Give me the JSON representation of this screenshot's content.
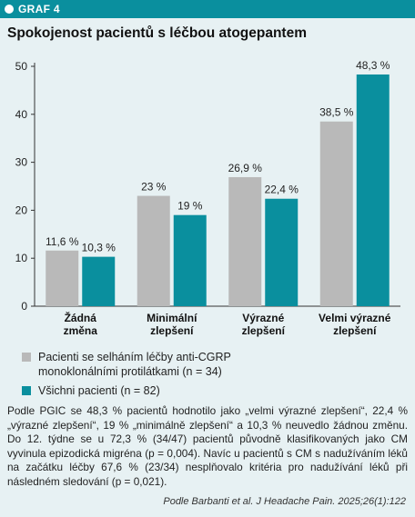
{
  "header": {
    "label": "GRAF 4"
  },
  "colors": {
    "accent": "#0a8f9e",
    "series1": "#b9b9b9",
    "series2": "#0a8f9e",
    "background": "#e7f1f3"
  },
  "chart_data": {
    "type": "bar",
    "title": "Spokojenost pacientů s léčbou atogepantem",
    "categories": [
      [
        "Žádná",
        "změna"
      ],
      [
        "Minimální",
        "zlepšení"
      ],
      [
        "Výrazné",
        "zlepšení"
      ],
      [
        "Velmi výrazné",
        "zlepšení"
      ]
    ],
    "series": [
      {
        "name": "Pacienti se selháním léčby anti-CGRP monoklonálními protilátkami (n = 34)",
        "values": [
          11.6,
          23,
          26.9,
          38.5
        ],
        "labels": [
          "11,6 %",
          "23 %",
          "26,9 %",
          "38,5 %"
        ],
        "color": "#b9b9b9"
      },
      {
        "name": "Všichni pacienti (n = 82)",
        "values": [
          10.3,
          19,
          22.4,
          48.3
        ],
        "labels": [
          "10,3 %",
          "19 %",
          "22,4 %",
          "48,3 %"
        ],
        "color": "#0a8f9e"
      }
    ],
    "ylim": [
      0,
      50
    ],
    "yticks": [
      "0",
      "10",
      "20",
      "30",
      "40",
      "50"
    ],
    "grid": false,
    "legend": "bottom"
  },
  "legend": {
    "s1_line1": "Pacienti se selháním léčby anti-CGRP",
    "s1_line2": "monoklonálními protilátkami (n = 34)",
    "s2": "Všichni pacienti (n = 82)"
  },
  "note": "Podle PGIC se 48,3 % pacientů hodnotilo jako „velmi výrazné zlepšení“, 22,4 % „výrazné zlepšení“, 19 % „minimálně zlepšení“ a 10,3 % neuvedlo žádnou změnu. Do 12. týdne se u 72,3 % (34/47) pacientů původně klasifikovaných jako CM vyvinula epizodická migréna (p = 0,004). Navíc u pacientů s CM s nadužíváním léků na začátku léčby 67,6 % (23/34) nesplňovalo kritéria pro nadužívání léků při následném sledování (p = 0,021).",
  "source": "Podle Barbanti et al. J Headache Pain. 2025;26(1):122"
}
